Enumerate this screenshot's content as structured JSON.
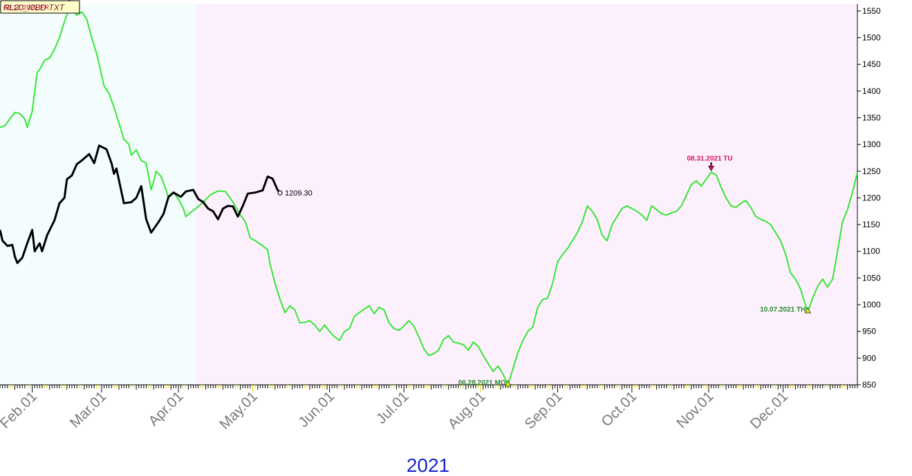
{
  "title_box": {
    "text": "RL20_I0BD TXT",
    "overlay_text": "02.12.2021 FR"
  },
  "colors": {
    "history_bg": "#f3fdfd",
    "forecast_bg": "#fdf0fd",
    "forecast_line": "#33e633",
    "actual_line": "#000000",
    "high_marker": "#d4145a",
    "low_marker": "#2a8a2a",
    "high_label": "#d4145a",
    "low_label": "#2a8a2a"
  },
  "chart_data": {
    "type": "line",
    "year_label": "2021",
    "x_ticks": [
      "Feb.01",
      "Mar.01",
      "Apr.01",
      "May.01",
      "Jun.01",
      "Jul.01",
      "Aug.01",
      "Sep.01",
      "Oct.01",
      "Nov.01",
      "Dec.01"
    ],
    "y_ticks": [
      850,
      900,
      950,
      1000,
      1050,
      1100,
      1150,
      1200,
      1250,
      1300,
      1350,
      1400,
      1450,
      1500,
      1550
    ],
    "ylim": [
      850,
      1555
    ],
    "xlim": [
      "2021-01-19",
      "2021-12-31"
    ],
    "forecast_start": "2021-04-08",
    "last_value_label": "1209.30",
    "series": [
      {
        "role": "forecast",
        "points": [
          [
            "2021-01-19",
            1332
          ],
          [
            "2021-01-21",
            1335
          ],
          [
            "2021-01-23",
            1348
          ],
          [
            "2021-01-25",
            1360
          ],
          [
            "2021-01-27",
            1358
          ],
          [
            "2021-01-29",
            1348
          ],
          [
            "2021-01-30",
            1332
          ],
          [
            "2021-02-01",
            1362
          ],
          [
            "2021-02-03",
            1435
          ],
          [
            "2021-02-04",
            1440
          ],
          [
            "2021-02-06",
            1458
          ],
          [
            "2021-02-08",
            1462
          ],
          [
            "2021-02-10",
            1478
          ],
          [
            "2021-02-12",
            1500
          ],
          [
            "2021-02-14",
            1530
          ],
          [
            "2021-02-16",
            1553
          ],
          [
            "2021-02-18",
            1548
          ],
          [
            "2021-02-19",
            1542
          ],
          [
            "2021-02-21",
            1548
          ],
          [
            "2021-02-23",
            1535
          ],
          [
            "2021-02-25",
            1500
          ],
          [
            "2021-02-27",
            1470
          ],
          [
            "2021-03-02",
            1410
          ],
          [
            "2021-03-04",
            1395
          ],
          [
            "2021-03-06",
            1370
          ],
          [
            "2021-03-08",
            1340
          ],
          [
            "2021-03-10",
            1310
          ],
          [
            "2021-03-12",
            1300
          ],
          [
            "2021-03-13",
            1280
          ],
          [
            "2021-03-15",
            1290
          ],
          [
            "2021-03-17",
            1270
          ],
          [
            "2021-03-19",
            1265
          ],
          [
            "2021-03-21",
            1215
          ],
          [
            "2021-03-22",
            1230
          ],
          [
            "2021-03-23",
            1250
          ],
          [
            "2021-03-25",
            1240
          ],
          [
            "2021-03-27",
            1215
          ],
          [
            "2021-03-28",
            1200
          ],
          [
            "2021-03-30",
            1210
          ],
          [
            "2021-04-01",
            1198
          ],
          [
            "2021-04-03",
            1180
          ],
          [
            "2021-04-04",
            1165
          ],
          [
            "2021-04-06",
            1173
          ],
          [
            "2021-04-08",
            1180
          ],
          [
            "2021-04-11",
            1192
          ],
          [
            "2021-04-14",
            1206
          ],
          [
            "2021-04-17",
            1213
          ],
          [
            "2021-04-20",
            1212
          ],
          [
            "2021-04-23",
            1192
          ],
          [
            "2021-04-26",
            1168
          ],
          [
            "2021-04-28",
            1155
          ],
          [
            "2021-04-30",
            1125
          ],
          [
            "2021-05-02",
            1120
          ],
          [
            "2021-05-05",
            1110
          ],
          [
            "2021-05-07",
            1103
          ],
          [
            "2021-05-08",
            1076
          ],
          [
            "2021-05-10",
            1040
          ],
          [
            "2021-05-12",
            1010
          ],
          [
            "2021-05-14",
            985
          ],
          [
            "2021-05-16",
            998
          ],
          [
            "2021-05-18",
            990
          ],
          [
            "2021-05-20",
            966
          ],
          [
            "2021-05-22",
            967
          ],
          [
            "2021-05-24",
            970
          ],
          [
            "2021-05-26",
            962
          ],
          [
            "2021-05-28",
            950
          ],
          [
            "2021-05-30",
            962
          ],
          [
            "2021-06-01",
            950
          ],
          [
            "2021-06-03",
            940
          ],
          [
            "2021-06-05",
            933
          ],
          [
            "2021-06-07",
            950
          ],
          [
            "2021-06-09",
            955
          ],
          [
            "2021-06-11",
            978
          ],
          [
            "2021-06-13",
            985
          ],
          [
            "2021-06-15",
            992
          ],
          [
            "2021-06-17",
            998
          ],
          [
            "2021-06-19",
            983
          ],
          [
            "2021-06-21",
            995
          ],
          [
            "2021-06-23",
            990
          ],
          [
            "2021-06-25",
            966
          ],
          [
            "2021-06-27",
            955
          ],
          [
            "2021-06-29",
            952
          ],
          [
            "2021-07-01",
            960
          ],
          [
            "2021-07-03",
            970
          ],
          [
            "2021-07-05",
            960
          ],
          [
            "2021-07-07",
            940
          ],
          [
            "2021-07-09",
            918
          ],
          [
            "2021-07-11",
            905
          ],
          [
            "2021-07-13",
            908
          ],
          [
            "2021-07-15",
            915
          ],
          [
            "2021-07-17",
            935
          ],
          [
            "2021-07-19",
            942
          ],
          [
            "2021-07-21",
            930
          ],
          [
            "2021-07-23",
            928
          ],
          [
            "2021-07-25",
            925
          ],
          [
            "2021-07-27",
            915
          ],
          [
            "2021-07-29",
            930
          ],
          [
            "2021-07-31",
            922
          ],
          [
            "2021-08-02",
            905
          ],
          [
            "2021-08-04",
            890
          ],
          [
            "2021-08-06",
            875
          ],
          [
            "2021-08-08",
            885
          ],
          [
            "2021-08-10",
            870
          ],
          [
            "2021-08-12",
            850
          ],
          [
            "2021-08-14",
            880
          ],
          [
            "2021-08-16",
            910
          ],
          [
            "2021-08-18",
            933
          ],
          [
            "2021-08-20",
            950
          ],
          [
            "2021-08-22",
            958
          ],
          [
            "2021-08-24",
            995
          ],
          [
            "2021-08-26",
            1010
          ],
          [
            "2021-08-28",
            1012
          ],
          [
            "2021-08-30",
            1040
          ],
          [
            "2021-09-01",
            1080
          ],
          [
            "2021-09-03",
            1094
          ],
          [
            "2021-09-05",
            1105
          ],
          [
            "2021-09-07",
            1120
          ],
          [
            "2021-09-09",
            1135
          ],
          [
            "2021-09-11",
            1155
          ],
          [
            "2021-09-13",
            1185
          ],
          [
            "2021-09-15",
            1175
          ],
          [
            "2021-09-17",
            1160
          ],
          [
            "2021-09-19",
            1130
          ],
          [
            "2021-09-21",
            1120
          ],
          [
            "2021-09-23",
            1150
          ],
          [
            "2021-09-25",
            1165
          ],
          [
            "2021-09-27",
            1180
          ],
          [
            "2021-09-29",
            1185
          ],
          [
            "2021-10-01",
            1180
          ],
          [
            "2021-10-03",
            1175
          ],
          [
            "2021-10-05",
            1168
          ],
          [
            "2021-10-07",
            1158
          ],
          [
            "2021-10-09",
            1185
          ],
          [
            "2021-10-11",
            1178
          ],
          [
            "2021-10-13",
            1170
          ],
          [
            "2021-10-15",
            1168
          ],
          [
            "2021-10-17",
            1172
          ],
          [
            "2021-10-19",
            1175
          ],
          [
            "2021-10-21",
            1185
          ],
          [
            "2021-10-23",
            1205
          ],
          [
            "2021-10-25",
            1225
          ],
          [
            "2021-10-27",
            1232
          ],
          [
            "2021-10-29",
            1222
          ],
          [
            "2021-10-31",
            1235
          ],
          [
            "2021-11-02",
            1248
          ],
          [
            "2021-11-04",
            1243
          ],
          [
            "2021-11-06",
            1220
          ],
          [
            "2021-11-08",
            1200
          ],
          [
            "2021-11-10",
            1185
          ],
          [
            "2021-11-12",
            1182
          ],
          [
            "2021-11-14",
            1190
          ],
          [
            "2021-11-16",
            1195
          ],
          [
            "2021-11-18",
            1182
          ],
          [
            "2021-11-20",
            1165
          ],
          [
            "2021-11-22",
            1160
          ],
          [
            "2021-11-24",
            1156
          ],
          [
            "2021-11-26",
            1150
          ],
          [
            "2021-11-28",
            1135
          ],
          [
            "2021-11-30",
            1120
          ],
          [
            "2021-12-02",
            1095
          ],
          [
            "2021-12-04",
            1060
          ],
          [
            "2021-12-06",
            1048
          ],
          [
            "2021-12-08",
            1030
          ],
          [
            "2021-12-10",
            1000
          ],
          [
            "2021-12-11",
            987
          ],
          [
            "2021-12-13",
            1013
          ],
          [
            "2021-12-15",
            1035
          ],
          [
            "2021-12-17",
            1048
          ],
          [
            "2021-12-19",
            1033
          ],
          [
            "2021-12-21",
            1048
          ],
          [
            "2021-12-23",
            1100
          ],
          [
            "2021-12-25",
            1155
          ],
          [
            "2021-12-27",
            1178
          ],
          [
            "2021-12-29",
            1210
          ],
          [
            "2021-12-31",
            1248
          ]
        ]
      },
      {
        "role": "actual",
        "points": [
          [
            "2021-01-19",
            1140
          ],
          [
            "2021-01-20",
            1120
          ],
          [
            "2021-01-22",
            1110
          ],
          [
            "2021-01-24",
            1112
          ],
          [
            "2021-01-25",
            1090
          ],
          [
            "2021-01-26",
            1078
          ],
          [
            "2021-01-28",
            1088
          ],
          [
            "2021-01-30",
            1115
          ],
          [
            "2021-02-01",
            1140
          ],
          [
            "2021-02-02",
            1100
          ],
          [
            "2021-02-04",
            1115
          ],
          [
            "2021-02-05",
            1100
          ],
          [
            "2021-02-07",
            1130
          ],
          [
            "2021-02-10",
            1158
          ],
          [
            "2021-02-12",
            1190
          ],
          [
            "2021-02-14",
            1200
          ],
          [
            "2021-02-15",
            1235
          ],
          [
            "2021-02-17",
            1242
          ],
          [
            "2021-02-19",
            1263
          ],
          [
            "2021-02-21",
            1270
          ],
          [
            "2021-02-24",
            1282
          ],
          [
            "2021-02-26",
            1265
          ],
          [
            "2021-02-28",
            1298
          ],
          [
            "2021-03-03",
            1291
          ],
          [
            "2021-03-05",
            1265
          ],
          [
            "2021-03-06",
            1245
          ],
          [
            "2021-03-07",
            1255
          ],
          [
            "2021-03-10",
            1190
          ],
          [
            "2021-03-13",
            1192
          ],
          [
            "2021-03-15",
            1200
          ],
          [
            "2021-03-17",
            1222
          ],
          [
            "2021-03-19",
            1160
          ],
          [
            "2021-03-21",
            1135
          ],
          [
            "2021-03-24",
            1155
          ],
          [
            "2021-03-26",
            1170
          ],
          [
            "2021-03-28",
            1202
          ],
          [
            "2021-03-30",
            1210
          ],
          [
            "2021-04-02",
            1202
          ],
          [
            "2021-04-04",
            1212
          ],
          [
            "2021-04-07",
            1215
          ],
          [
            "2021-04-09",
            1198
          ],
          [
            "2021-04-11",
            1192
          ],
          [
            "2021-04-13",
            1180
          ],
          [
            "2021-04-15",
            1175
          ],
          [
            "2021-04-17",
            1160
          ],
          [
            "2021-04-19",
            1180
          ],
          [
            "2021-04-21",
            1185
          ],
          [
            "2021-04-23",
            1184
          ],
          [
            "2021-04-25",
            1165
          ],
          [
            "2021-04-27",
            1185
          ],
          [
            "2021-04-29",
            1208
          ],
          [
            "2021-05-02",
            1210
          ],
          [
            "2021-05-05",
            1214
          ],
          [
            "2021-05-07",
            1240
          ],
          [
            "2021-05-09",
            1236
          ],
          [
            "2021-05-11",
            1215
          ],
          [
            "2021-05-12",
            1209.3
          ]
        ]
      }
    ],
    "annotations": [
      {
        "kind": "high",
        "date": "2021-02-16",
        "value": 1553,
        "label": ""
      },
      {
        "kind": "low",
        "date": "2021-08-12",
        "value": 850,
        "label": "06.28.2021 MO"
      },
      {
        "kind": "high",
        "date": "2021-11-02",
        "value": 1248,
        "label": "08.31.2021 TU"
      },
      {
        "kind": "low",
        "date": "2021-12-11",
        "value": 987,
        "label": "10.07.2021 TH"
      }
    ]
  }
}
